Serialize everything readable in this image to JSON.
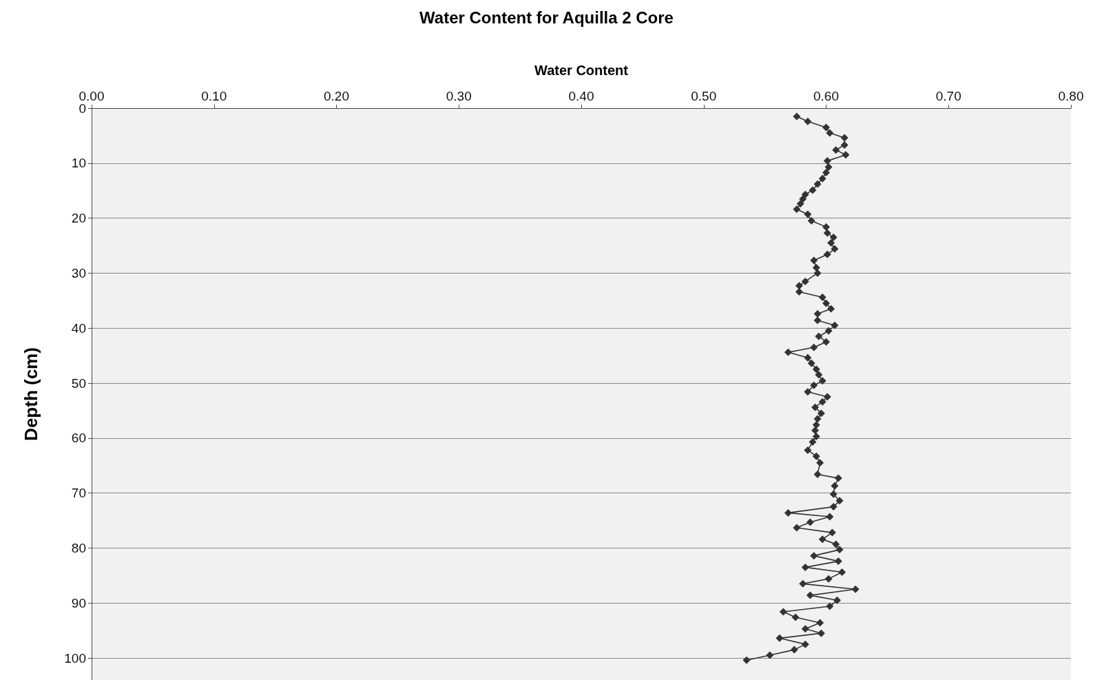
{
  "chart_data": {
    "type": "line",
    "title": "Water Content for Aquilla 2 Core",
    "xlabel": "Water Content",
    "ylabel": "Depth (cm)",
    "xlim": [
      0,
      0.8
    ],
    "xticks": [
      {
        "value": 0,
        "label": "0.00"
      },
      {
        "value": 0.1,
        "label": "0.10"
      },
      {
        "value": 0.2,
        "label": "0.20"
      },
      {
        "value": 0.3,
        "label": "0.30"
      },
      {
        "value": 0.4,
        "label": "0.40"
      },
      {
        "value": 0.5,
        "label": "0.50"
      },
      {
        "value": 0.6,
        "label": "0.60"
      },
      {
        "value": 0.7,
        "label": "0.70"
      },
      {
        "value": 0.8,
        "label": "0.80"
      }
    ],
    "ylim": [
      104,
      0
    ],
    "yticks": [
      0,
      10,
      20,
      30,
      40,
      50,
      60,
      70,
      80,
      90,
      100
    ],
    "grid": "y",
    "marker": "diamond",
    "line_style": "solid",
    "series": [
      {
        "color": "#333333",
        "x": [
          0.576,
          0.585,
          0.6,
          0.603,
          0.615,
          0.615,
          0.608,
          0.616,
          0.601,
          0.602,
          0.6,
          0.597,
          0.593,
          0.589,
          0.583,
          0.581,
          0.579,
          0.576,
          0.585,
          0.588,
          0.6,
          0.601,
          0.606,
          0.604,
          0.607,
          0.601,
          0.59,
          0.592,
          0.593,
          0.583,
          0.578,
          0.578,
          0.597,
          0.6,
          0.604,
          0.593,
          0.593,
          0.607,
          0.602,
          0.594,
          0.6,
          0.59,
          0.569,
          0.585,
          0.588,
          0.592,
          0.594,
          0.597,
          0.59,
          0.585,
          0.601,
          0.597,
          0.591,
          0.596,
          0.593,
          0.592,
          0.591,
          0.592,
          0.589,
          0.585,
          0.592,
          0.595,
          0.593,
          0.61,
          0.607,
          0.606,
          0.611,
          0.606,
          0.569,
          0.603,
          0.587,
          0.576,
          0.605,
          0.597,
          0.608,
          0.611,
          0.59,
          0.61,
          0.583,
          0.613,
          0.602,
          0.581,
          0.624,
          0.587,
          0.609,
          0.603,
          0.565,
          0.575,
          0.595,
          0.583,
          0.596,
          0.562,
          0.583,
          0.574,
          0.554,
          0.535
        ],
        "values": [
          1.5,
          2.4,
          3.5,
          4.5,
          5.4,
          6.7,
          7.6,
          8.5,
          9.6,
          10.7,
          11.7,
          12.8,
          13.8,
          14.9,
          15.7,
          16.5,
          17.4,
          18.4,
          19.3,
          20.5,
          21.6,
          22.7,
          23.5,
          24.5,
          25.6,
          26.6,
          27.7,
          29.0,
          30.0,
          31.5,
          32.3,
          33.4,
          34.4,
          35.5,
          36.5,
          37.4,
          38.6,
          39.5,
          40.5,
          41.5,
          42.5,
          43.5,
          44.4,
          45.4,
          46.4,
          47.5,
          48.5,
          49.6,
          50.4,
          51.6,
          52.5,
          53.4,
          54.4,
          55.5,
          56.5,
          57.6,
          58.6,
          59.7,
          60.7,
          62.2,
          63.3,
          64.5,
          66.6,
          67.3,
          68.7,
          70.2,
          71.4,
          72.5,
          73.6,
          74.3,
          75.3,
          76.3,
          77.2,
          78.4,
          79.3,
          80.3,
          81.4,
          82.4,
          83.5,
          84.4,
          85.6,
          86.5,
          87.5,
          88.6,
          89.5,
          90.6,
          91.6,
          92.6,
          93.6,
          94.7,
          95.5,
          96.4,
          97.5,
          98.5,
          99.5,
          100.4
        ]
      }
    ]
  }
}
